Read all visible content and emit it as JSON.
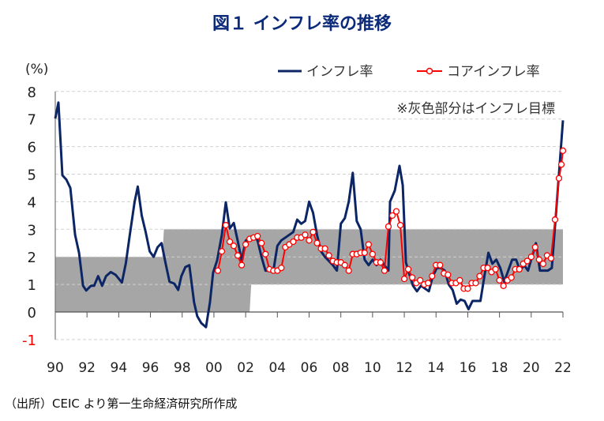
{
  "title": "図１ インフレ率の推移",
  "source": "（出所）CEIC より第一生命経済研究所作成",
  "note": "※灰色部分はインフレ目標",
  "colors": {
    "inflation": "#0b2565",
    "core": "#ff0000",
    "target_band": "#a6a6a6",
    "title": "#0b2a7a",
    "negative_tick": "#ff0000"
  },
  "chart_data": {
    "type": "line",
    "ylabel": "(%)",
    "ylim": [
      -1,
      8
    ],
    "xlim": [
      1990,
      2022
    ],
    "grid": true,
    "legend_position": "top-right",
    "y_ticks": [
      "-1",
      "0",
      "1",
      "2",
      "3",
      "4",
      "5",
      "6",
      "7",
      "8"
    ],
    "x_ticks": [
      "90",
      "92",
      "94",
      "96",
      "98",
      "00",
      "02",
      "04",
      "06",
      "08",
      "10",
      "12",
      "14",
      "16",
      "18",
      "20",
      "22"
    ],
    "target_band": [
      {
        "from": 1990,
        "to": 1996.7,
        "low": 0,
        "high": 2
      },
      {
        "from": 1996.7,
        "to": 2002.4,
        "low": 0,
        "high": 3
      },
      {
        "from": 2002.4,
        "to": 2022,
        "low": 1,
        "high": 3
      }
    ],
    "series": [
      {
        "name": "インフレ率",
        "marker": "none",
        "x": [
          1990.0,
          1990.2,
          1990.45,
          1990.7,
          1990.95,
          1991.25,
          1991.5,
          1991.75,
          1991.95,
          1992.25,
          1992.45,
          1992.7,
          1992.95,
          1993.2,
          1993.5,
          1993.8,
          1994.2,
          1994.45,
          1994.7,
          1995.0,
          1995.2,
          1995.45,
          1995.7,
          1995.95,
          1996.2,
          1996.45,
          1996.7,
          1996.95,
          1997.2,
          1997.5,
          1997.75,
          1997.95,
          1998.2,
          1998.45,
          1998.75,
          1998.95,
          1999.2,
          1999.5,
          1999.75,
          1999.95,
          2000.2,
          2000.5,
          2000.75,
          2001.0,
          2001.25,
          2001.5,
          2001.75,
          2002.0,
          2002.25,
          2002.5,
          2002.75,
          2003.0,
          2003.25,
          2003.5,
          2003.75,
          2004.0,
          2004.25,
          2004.5,
          2004.75,
          2005.0,
          2005.25,
          2005.5,
          2005.75,
          2006.0,
          2006.25,
          2006.5,
          2006.75,
          2007.0,
          2007.25,
          2007.5,
          2007.75,
          2008.0,
          2008.25,
          2008.5,
          2008.75,
          2009.0,
          2009.25,
          2009.5,
          2009.75,
          2010.0,
          2010.25,
          2010.5,
          2010.75,
          2011.0,
          2011.1,
          2011.4,
          2011.7,
          2011.9,
          2012.1,
          2012.3,
          2012.55,
          2012.8,
          2013.05,
          2013.3,
          2013.55,
          2013.8,
          2014.05,
          2014.3,
          2014.55,
          2014.8,
          2015.05,
          2015.3,
          2015.55,
          2015.8,
          2016.05,
          2016.3,
          2016.55,
          2016.8,
          2017.05,
          2017.3,
          2017.55,
          2017.8,
          2018.05,
          2018.3,
          2018.55,
          2018.8,
          2019.05,
          2019.3,
          2019.55,
          2019.8,
          2020.05,
          2020.3,
          2020.55,
          2020.8,
          2021.05,
          2021.3,
          2021.55,
          2021.8,
          2022.0
        ],
        "values": [
          7.02,
          7.6,
          4.96,
          4.8,
          4.5,
          2.8,
          2.15,
          0.95,
          0.78,
          0.95,
          0.95,
          1.3,
          0.95,
          1.3,
          1.45,
          1.35,
          1.07,
          1.77,
          2.8,
          4.0,
          4.55,
          3.5,
          2.9,
          2.2,
          2.0,
          2.35,
          2.5,
          1.77,
          1.1,
          1.03,
          0.8,
          1.3,
          1.63,
          1.7,
          0.35,
          -0.15,
          -0.4,
          -0.55,
          0.35,
          1.43,
          1.87,
          2.8,
          3.98,
          3.03,
          3.23,
          2.58,
          1.87,
          2.58,
          2.72,
          2.75,
          2.6,
          2.0,
          1.5,
          1.5,
          1.5,
          2.4,
          2.6,
          2.7,
          2.8,
          2.9,
          3.35,
          3.2,
          3.3,
          4.0,
          3.6,
          2.8,
          2.2,
          2.0,
          1.85,
          1.7,
          1.5,
          3.2,
          3.4,
          4.0,
          5.05,
          3.3,
          3.0,
          1.9,
          1.7,
          1.9,
          1.7,
          1.9,
          1.7,
          1.5,
          4.0,
          4.4,
          5.3,
          4.6,
          1.8,
          1.4,
          0.95,
          0.75,
          0.95,
          0.85,
          0.75,
          1.3,
          1.6,
          1.6,
          1.5,
          1.0,
          0.8,
          0.3,
          0.45,
          0.4,
          0.1,
          0.4,
          0.4,
          0.4,
          1.3,
          2.15,
          1.75,
          1.9,
          1.6,
          1.1,
          1.5,
          1.9,
          1.9,
          1.5,
          1.7,
          1.5,
          2.0,
          2.5,
          1.5,
          1.5,
          1.5,
          1.6,
          3.5,
          5.4,
          6.95
        ]
      },
      {
        "name": "コアインフレ率",
        "marker": "circle",
        "x": [
          2000.25,
          2000.5,
          2000.75,
          2001.0,
          2001.25,
          2001.5,
          2001.75,
          2002.0,
          2002.25,
          2002.5,
          2002.75,
          2003.0,
          2003.25,
          2003.5,
          2003.75,
          2004.0,
          2004.25,
          2004.5,
          2004.75,
          2005.0,
          2005.25,
          2005.5,
          2005.75,
          2006.0,
          2006.25,
          2006.5,
          2006.75,
          2007.0,
          2007.25,
          2007.5,
          2007.75,
          2008.0,
          2008.25,
          2008.5,
          2008.75,
          2009.0,
          2009.25,
          2009.5,
          2009.75,
          2010.0,
          2010.25,
          2010.5,
          2010.75,
          2011.0,
          2011.25,
          2011.5,
          2011.75,
          2012.0,
          2012.25,
          2012.5,
          2012.75,
          2013.0,
          2013.25,
          2013.5,
          2013.75,
          2014.0,
          2014.25,
          2014.5,
          2014.75,
          2015.0,
          2015.25,
          2015.5,
          2015.75,
          2016.0,
          2016.25,
          2016.5,
          2016.75,
          2017.0,
          2017.25,
          2017.5,
          2017.75,
          2018.0,
          2018.25,
          2018.5,
          2018.75,
          2019.0,
          2019.25,
          2019.5,
          2019.75,
          2020.0,
          2020.25,
          2020.5,
          2020.75,
          2021.0,
          2021.25,
          2021.5,
          2021.75,
          2021.9,
          2022.0
        ],
        "values": [
          1.5,
          2.2,
          3.15,
          2.55,
          2.4,
          2.05,
          1.7,
          2.45,
          2.65,
          2.7,
          2.75,
          2.5,
          2.1,
          1.55,
          1.5,
          1.5,
          1.6,
          2.35,
          2.45,
          2.55,
          2.7,
          2.7,
          2.8,
          2.6,
          2.9,
          2.5,
          2.3,
          2.3,
          2.05,
          1.85,
          1.8,
          1.8,
          1.7,
          1.5,
          2.1,
          2.1,
          2.15,
          2.15,
          2.45,
          2.1,
          1.8,
          1.8,
          1.5,
          3.1,
          3.5,
          3.65,
          3.15,
          1.2,
          1.55,
          1.25,
          1.05,
          1.15,
          1.0,
          1.05,
          1.3,
          1.7,
          1.7,
          1.4,
          1.35,
          1.05,
          1.05,
          1.15,
          0.85,
          0.85,
          1.05,
          1.05,
          1.3,
          1.6,
          1.6,
          1.45,
          1.55,
          1.15,
          0.95,
          1.15,
          1.25,
          1.55,
          1.55,
          1.75,
          1.85,
          2.0,
          2.35,
          1.9,
          1.75,
          2.05,
          1.95,
          3.35,
          4.85,
          5.35,
          5.85
        ]
      }
    ]
  }
}
